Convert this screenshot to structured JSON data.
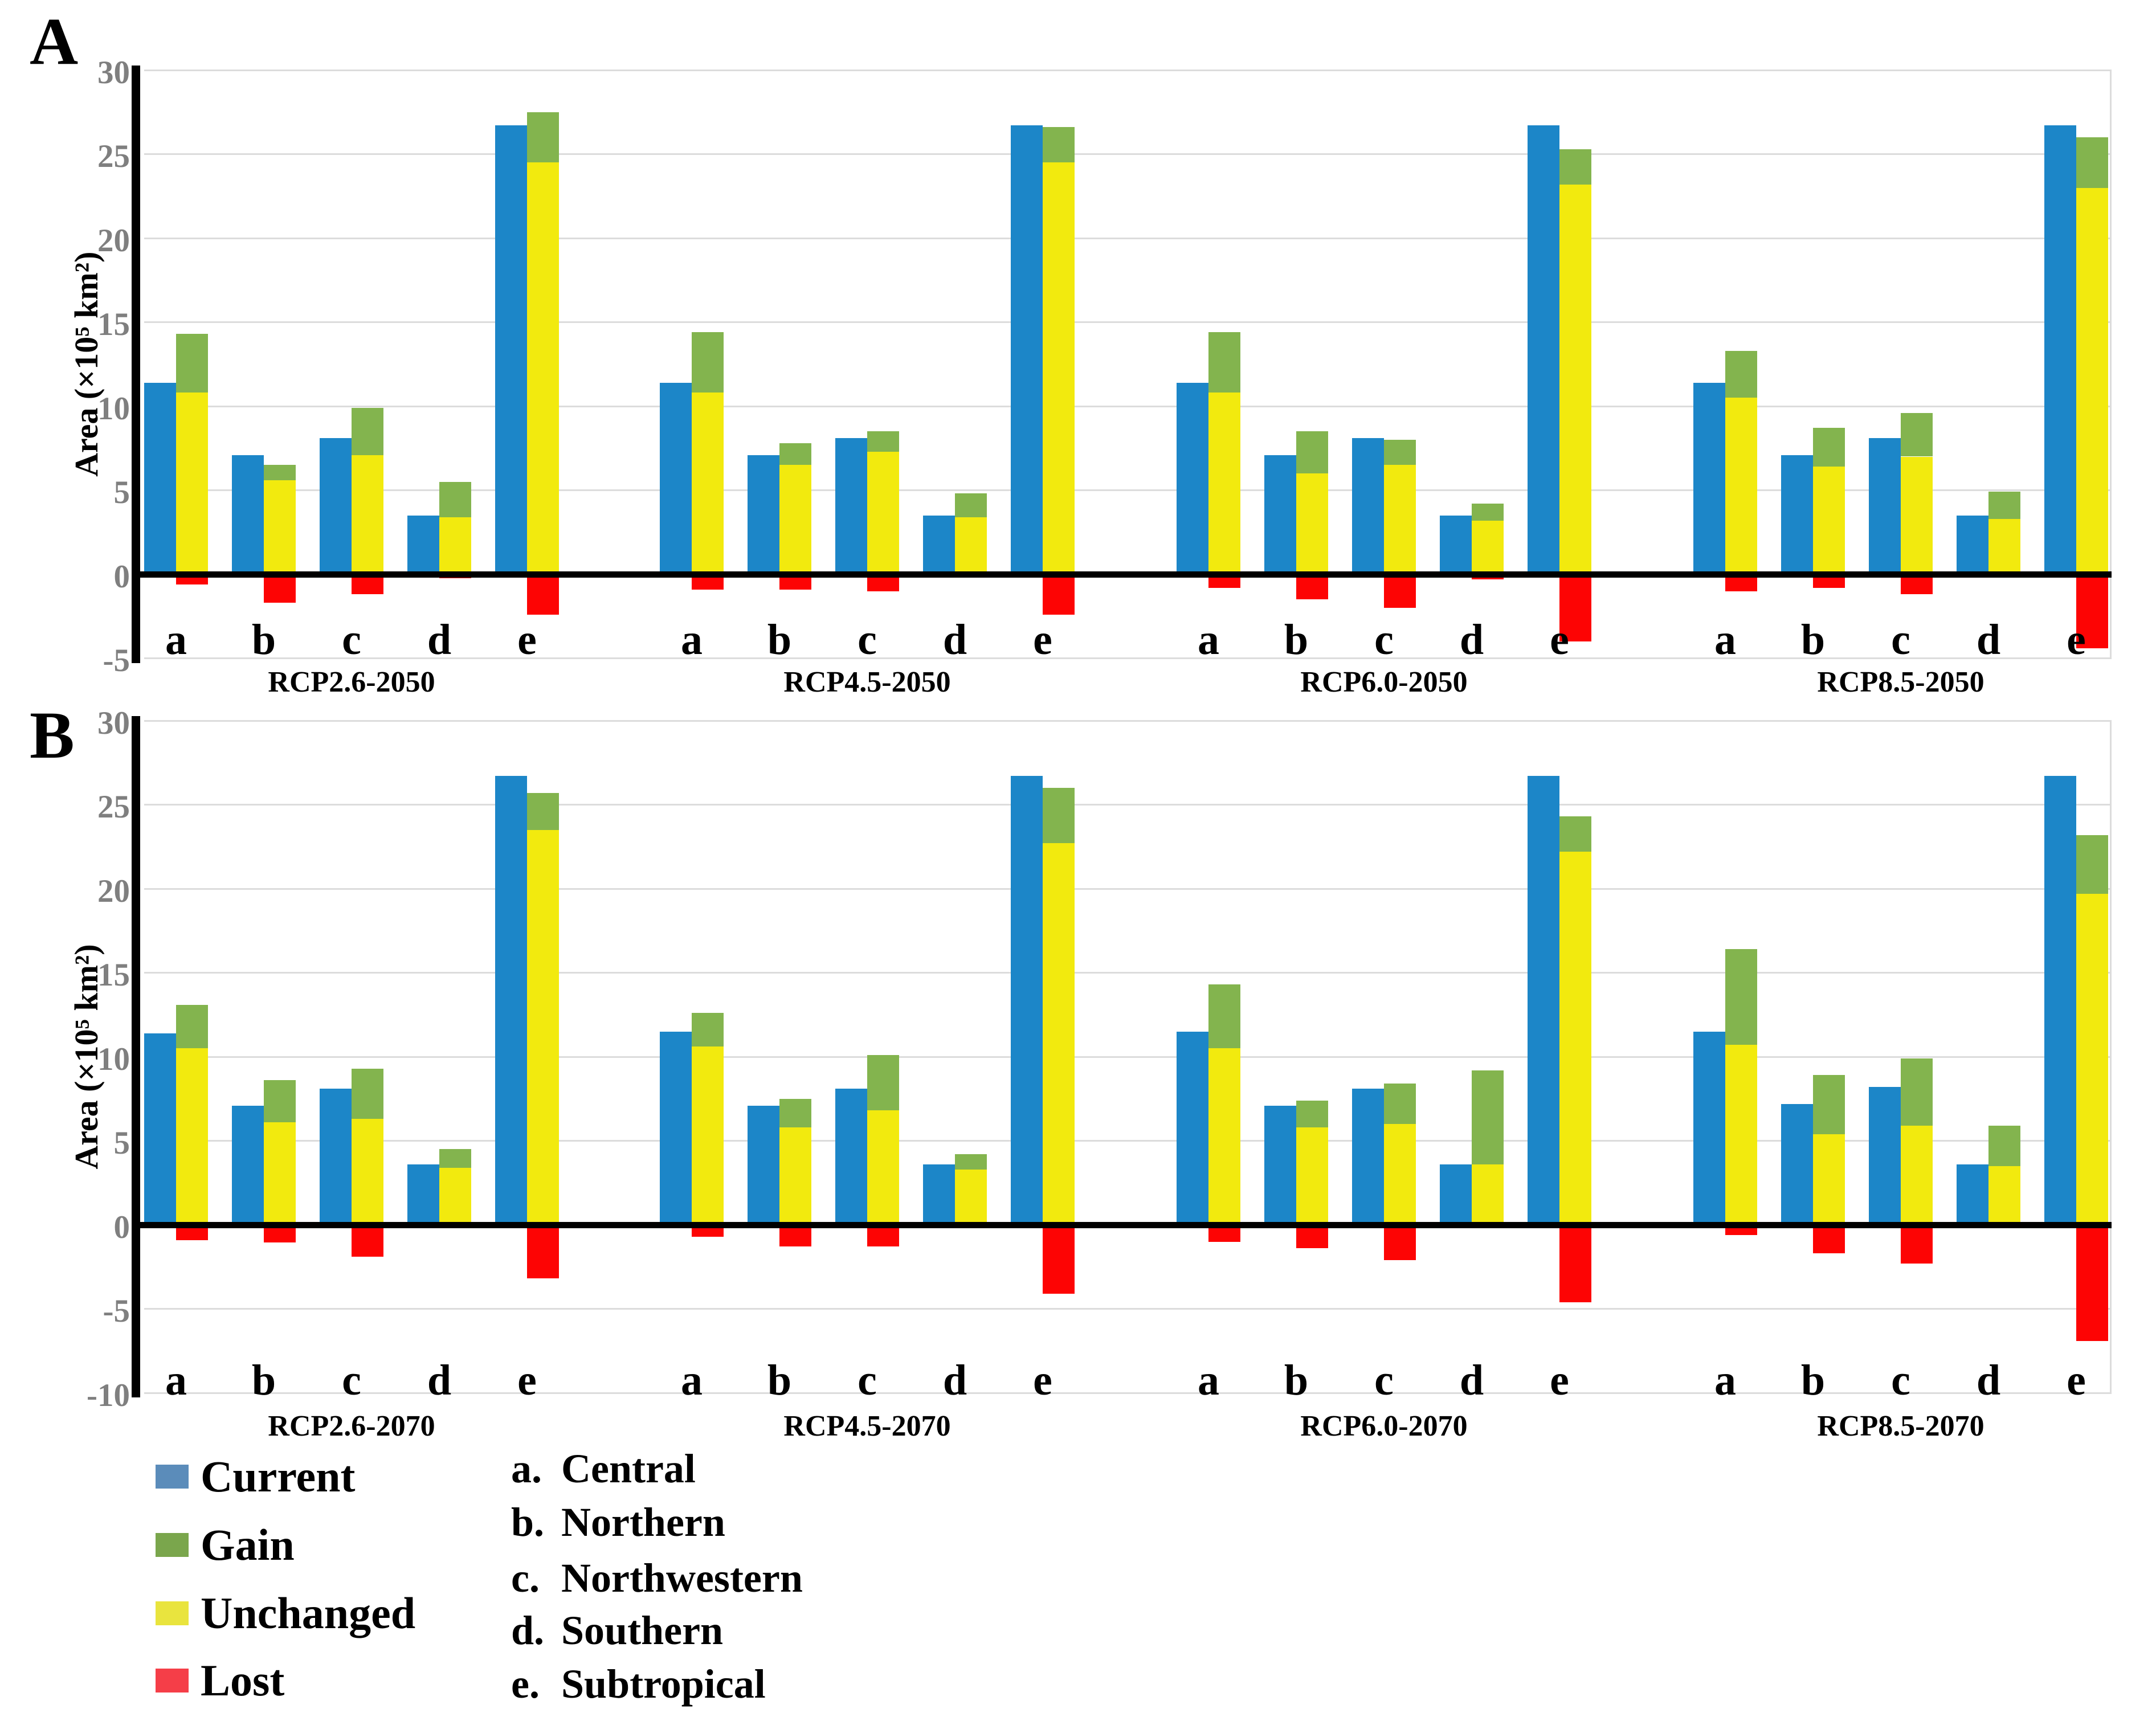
{
  "figure": {
    "panels": [
      {
        "letter": "A",
        "ylabel": "Area (×10⁵ km²)"
      },
      {
        "letter": "B",
        "ylabel": "Area (×10⁵ km²)"
      }
    ]
  },
  "legend": {
    "items": [
      {
        "label": "Current",
        "color": "#5b8cba"
      },
      {
        "label": "Gain",
        "color": "#7aa64c"
      },
      {
        "label": "Unchanged",
        "color": "#e9e43e"
      },
      {
        "label": "Lost",
        "color": "#f53e48"
      }
    ]
  },
  "region_key": {
    "items": [
      {
        "label": "a.",
        "name": "Central"
      },
      {
        "label": "b.",
        "name": "Northern"
      },
      {
        "label": "c.",
        "name": "Northwestern"
      },
      {
        "label": "d.",
        "name": "Southern"
      },
      {
        "label": "e.",
        "name": "Subtropical"
      }
    ]
  },
  "chart_data": [
    {
      "type": "bar",
      "panel": "A",
      "title": "",
      "xlabel": "",
      "ylabel": "Area (×10⁵ km²)",
      "ylim": [
        -5,
        30
      ],
      "yticks": [
        30,
        25,
        20,
        15,
        10,
        5,
        0,
        -5
      ],
      "grid": true,
      "legend_position": "bottom-left",
      "bar_colors": {
        "current": "#1c86c8",
        "gain": "#83b44e",
        "unchanged": "#f2ea0e",
        "lost": "#fd0404"
      },
      "categories": [
        "a",
        "b",
        "c",
        "d",
        "e"
      ],
      "groups": [
        {
          "label": "RCP2.6-2050",
          "current": [
            11.4,
            7.1,
            8.1,
            3.5,
            26.7
          ],
          "unchanged": [
            10.8,
            5.6,
            7.1,
            3.4,
            24.5
          ],
          "gain": [
            3.5,
            0.9,
            2.8,
            2.1,
            3.0
          ],
          "lost": [
            -0.6,
            -1.7,
            -1.2,
            -0.25,
            -2.4
          ]
        },
        {
          "label": "RCP4.5-2050",
          "current": [
            11.4,
            7.1,
            8.1,
            3.5,
            26.7
          ],
          "unchanged": [
            10.8,
            6.5,
            7.3,
            3.4,
            24.5
          ],
          "gain": [
            3.6,
            1.3,
            1.2,
            1.4,
            2.1
          ],
          "lost": [
            -0.9,
            -0.9,
            -1.0,
            -0.15,
            -2.4
          ]
        },
        {
          "label": "RCP6.0-2050",
          "current": [
            11.4,
            7.1,
            8.1,
            3.5,
            26.7
          ],
          "unchanged": [
            10.8,
            6.0,
            6.5,
            3.2,
            23.2
          ],
          "gain": [
            3.6,
            2.5,
            1.5,
            1.0,
            2.1
          ],
          "lost": [
            -0.8,
            -1.5,
            -2.0,
            -0.3,
            -4.0
          ]
        },
        {
          "label": "RCP8.5-2050",
          "current": [
            11.4,
            7.1,
            8.1,
            3.5,
            26.7
          ],
          "unchanged": [
            10.5,
            6.4,
            7.0,
            3.3,
            23.0
          ],
          "gain": [
            2.8,
            2.3,
            2.6,
            1.6,
            3.0
          ],
          "lost": [
            -1.0,
            -0.8,
            -1.2,
            -0.15,
            -4.4
          ]
        }
      ]
    },
    {
      "type": "bar",
      "panel": "B",
      "title": "",
      "xlabel": "",
      "ylabel": "Area (×10⁵ km²)",
      "ylim": [
        -10,
        30
      ],
      "yticks": [
        30,
        25,
        20,
        15,
        10,
        5,
        0,
        -5,
        -10
      ],
      "grid": true,
      "legend_position": "bottom-left",
      "bar_colors": {
        "current": "#1c86c8",
        "gain": "#83b44e",
        "unchanged": "#f2ea0e",
        "lost": "#fd0404"
      },
      "categories": [
        "a",
        "b",
        "c",
        "d",
        "e"
      ],
      "groups": [
        {
          "label": "RCP2.6-2070",
          "current": [
            11.4,
            7.1,
            8.1,
            3.6,
            26.7
          ],
          "unchanged": [
            10.5,
            6.1,
            6.3,
            3.4,
            23.5
          ],
          "gain": [
            2.6,
            2.5,
            3.0,
            1.1,
            2.2
          ],
          "lost": [
            -0.9,
            -1.05,
            -1.9,
            -0.2,
            -3.2
          ]
        },
        {
          "label": "RCP4.5-2070",
          "current": [
            11.5,
            7.1,
            8.1,
            3.6,
            26.7
          ],
          "unchanged": [
            10.6,
            5.8,
            6.8,
            3.3,
            22.7
          ],
          "gain": [
            2.0,
            1.7,
            3.3,
            0.9,
            3.3
          ],
          "lost": [
            -0.7,
            -1.3,
            -1.3,
            -0.2,
            -4.1
          ]
        },
        {
          "label": "RCP6.0-2070",
          "current": [
            11.5,
            7.1,
            8.1,
            3.6,
            26.7
          ],
          "unchanged": [
            10.5,
            5.8,
            6.0,
            3.6,
            22.2
          ],
          "gain": [
            3.8,
            1.6,
            2.4,
            5.6,
            2.1
          ],
          "lost": [
            -1.0,
            -1.4,
            -2.1,
            -0.2,
            -4.6
          ]
        },
        {
          "label": "RCP8.5-2070",
          "current": [
            11.5,
            7.2,
            8.2,
            3.6,
            26.7
          ],
          "unchanged": [
            10.7,
            5.4,
            5.9,
            3.5,
            19.7
          ],
          "gain": [
            5.7,
            3.5,
            4.0,
            2.4,
            3.5
          ],
          "lost": [
            -0.6,
            -1.7,
            -2.3,
            -0.2,
            -6.9
          ]
        }
      ]
    }
  ]
}
